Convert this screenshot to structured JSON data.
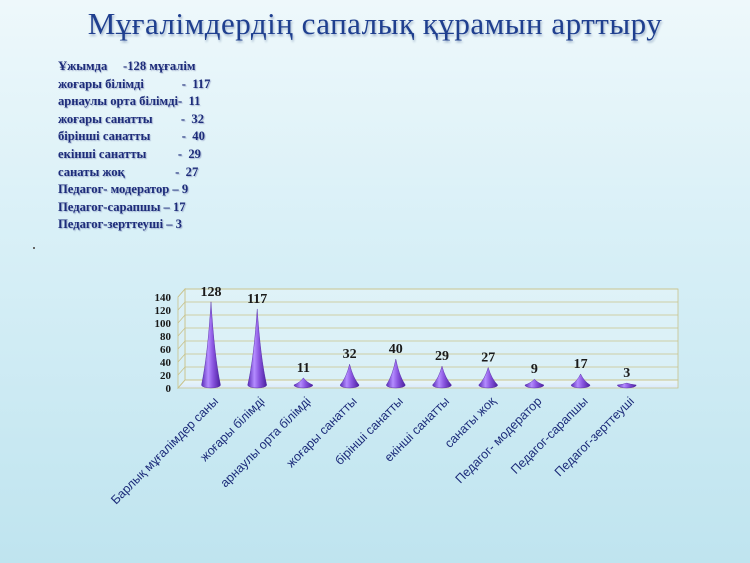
{
  "title": "Мұғалімдердің сапалық құрамын арттыру",
  "stats": [
    "Ұжымда     -128 мұғалім",
    "жоғары білімді            -  117",
    "арнаулы орта білімді-  11",
    "жоғары санатты         -  32",
    "бірінші санатты          -  40",
    "екінші санатты          -  29",
    "санаты жоқ                -  27",
    "Педагог- модератор – 9",
    "Педагог-сарапшы – 17",
    "Педагог-зерттеуші – 3"
  ],
  "colors": {
    "cone": "#8a55e0",
    "title": "#1f3f8f",
    "text": "#1d2c7a"
  },
  "chart_data": {
    "type": "bar",
    "categories": [
      "Барлық мұғалімдер саны",
      "жоғары білімді",
      "арнаулы орта білімді",
      "жоғары санатты",
      "бірінші санатты",
      "екінші санатты",
      "санаты жоқ",
      "Педагог- модератор",
      "Педагог-сарапшы",
      "Педагог-зерттеуші"
    ],
    "values": [
      128,
      117,
      11,
      32,
      40,
      29,
      27,
      9,
      17,
      3
    ],
    "yticks": [
      0,
      20,
      40,
      60,
      80,
      100,
      120,
      140
    ],
    "ylim": [
      0,
      140
    ],
    "grid": true,
    "data_labels": true
  }
}
